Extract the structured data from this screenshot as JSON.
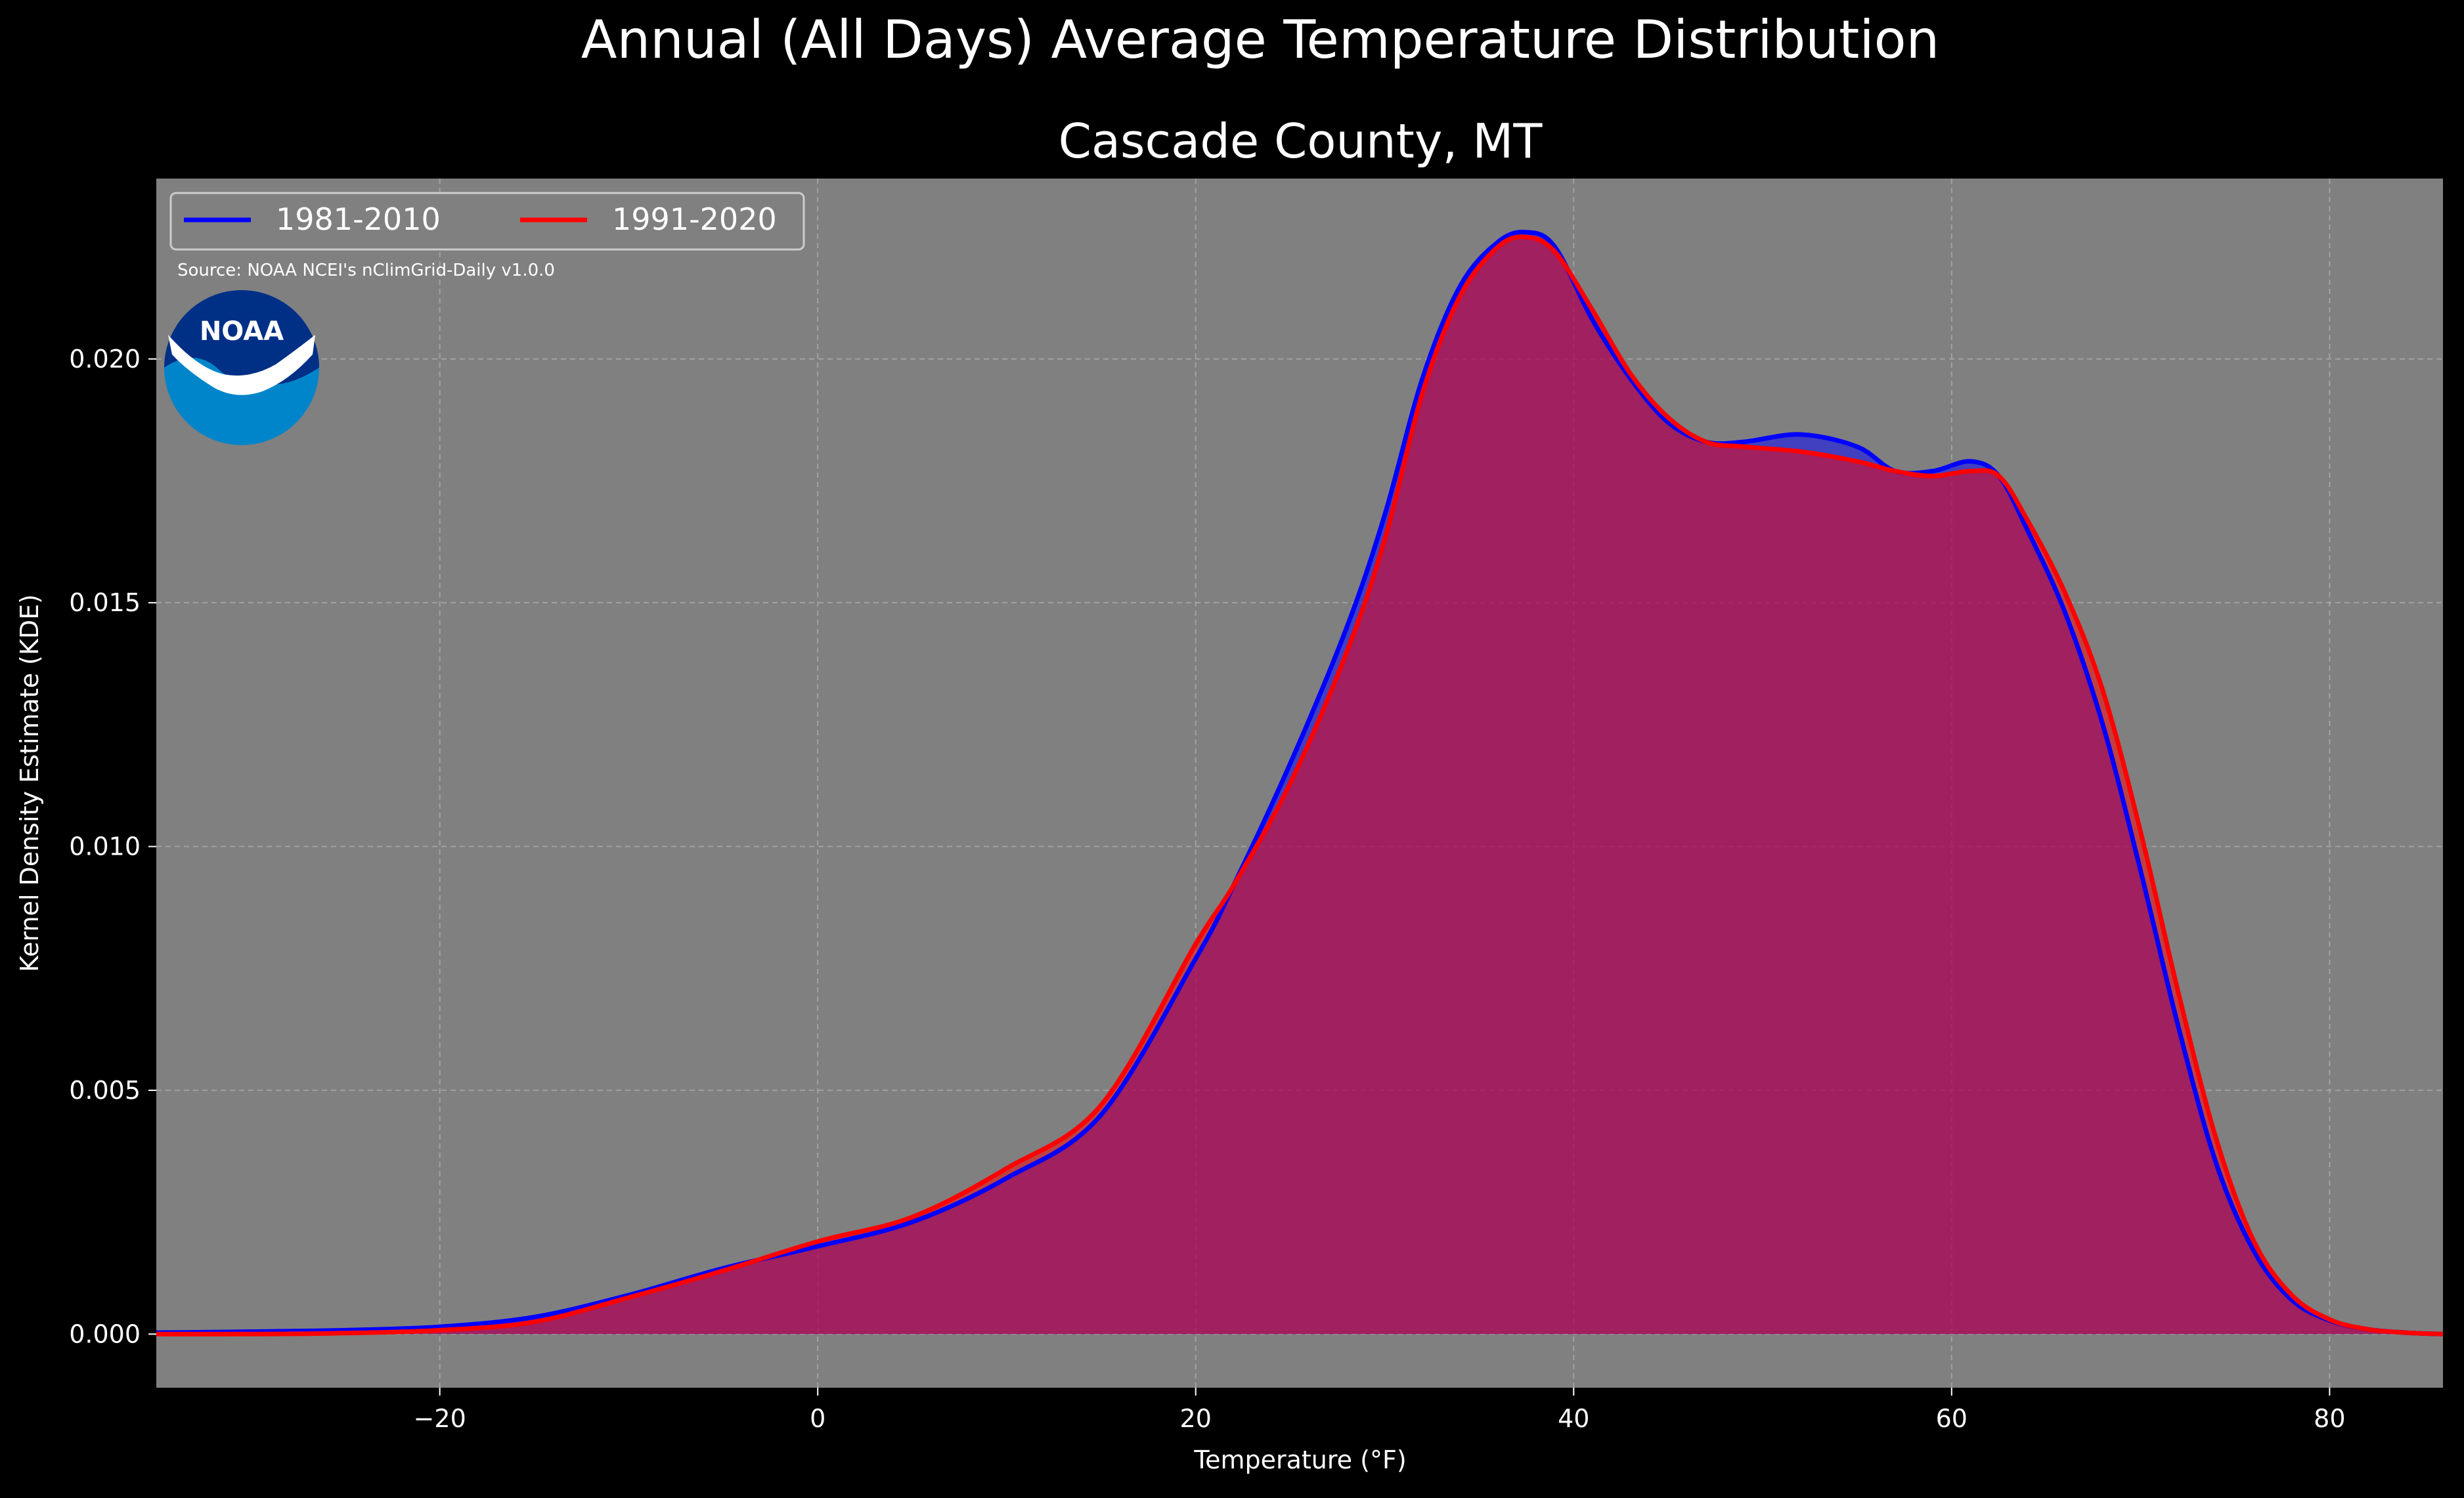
{
  "figure": {
    "suptitle": "Annual (All Days) Average Temperature Distribution",
    "title": "Cascade County, MT",
    "source": "Source: NOAA NCEI's nClimGrid-Daily v1.0.0",
    "logo_text": "NOAA"
  },
  "colors": {
    "background": "#000000",
    "plot_bg": "#808080",
    "series_1981": "#0000ff",
    "series_1991": "#ff0000",
    "text": "#ffffff"
  },
  "chart_data": {
    "type": "area",
    "title": "Cascade County, MT",
    "xlabel": "Temperature (°F)",
    "ylabel": "Kernel Density Estimate (KDE)",
    "xlim": [
      -35,
      86
    ],
    "ylim": [
      -0.0011,
      0.0237
    ],
    "xticks": [
      -20,
      0,
      20,
      40,
      60,
      80
    ],
    "xtick_labels": [
      "−20",
      "0",
      "20",
      "40",
      "60",
      "80"
    ],
    "yticks": [
      0.0,
      0.005,
      0.01,
      0.015,
      0.02
    ],
    "ytick_labels": [
      "0.000",
      "0.005",
      "0.010",
      "0.015",
      "0.020"
    ],
    "grid": true,
    "legend": "top-left",
    "series": [
      {
        "name": "1981-2010",
        "x": [
          -35,
          -30,
          -25,
          -20,
          -15,
          -10,
          -5,
          0,
          5,
          10,
          15,
          20,
          22,
          25,
          28,
          30,
          32,
          34,
          36,
          37.5,
          39,
          41,
          43,
          45,
          47,
          49,
          52,
          55,
          57,
          59,
          61,
          62.5,
          64,
          66,
          68,
          70,
          72,
          74,
          76,
          78,
          80,
          82,
          84,
          86
        ],
        "y": [
          3e-05,
          5e-05,
          8e-05,
          0.00015,
          0.00035,
          0.0008,
          0.00135,
          0.0018,
          0.0023,
          0.0032,
          0.0045,
          0.0077,
          0.0092,
          0.0117,
          0.0145,
          0.0168,
          0.0196,
          0.0215,
          0.0224,
          0.0226,
          0.0223,
          0.0208,
          0.0196,
          0.0187,
          0.0183,
          0.0183,
          0.01845,
          0.0182,
          0.0177,
          0.0177,
          0.0179,
          0.0176,
          0.0165,
          0.0148,
          0.0125,
          0.0095,
          0.0063,
          0.0035,
          0.0017,
          0.0007,
          0.00028,
          0.0001,
          3e-05,
          0.0
        ],
        "color": "#0000ff"
      },
      {
        "name": "1991-2020",
        "x": [
          -35,
          -30,
          -25,
          -20,
          -15,
          -10,
          -5,
          0,
          5,
          10,
          15,
          20,
          22,
          25,
          28,
          30,
          32,
          34,
          36,
          37.5,
          39,
          41,
          43,
          45,
          47,
          49,
          52,
          55,
          57,
          59,
          61,
          62.5,
          64,
          66,
          68,
          70,
          72,
          74,
          76,
          78,
          80,
          82,
          84,
          86
        ],
        "y": [
          0.0,
          0.0,
          2e-05,
          8e-05,
          0.00025,
          0.00075,
          0.0013,
          0.0019,
          0.0024,
          0.0034,
          0.0047,
          0.008,
          0.0092,
          0.0113,
          0.014,
          0.0163,
          0.0193,
          0.0213,
          0.0223,
          0.0225,
          0.0222,
          0.021,
          0.0197,
          0.0188,
          0.0183,
          0.0182,
          0.0181,
          0.0179,
          0.0177,
          0.0176,
          0.0177,
          0.0176,
          0.0167,
          0.0152,
          0.0132,
          0.0103,
          0.007,
          0.004,
          0.0019,
          0.0008,
          0.0003,
          0.0001,
          3e-05,
          0.0
        ],
        "color": "#ff0000"
      }
    ]
  }
}
